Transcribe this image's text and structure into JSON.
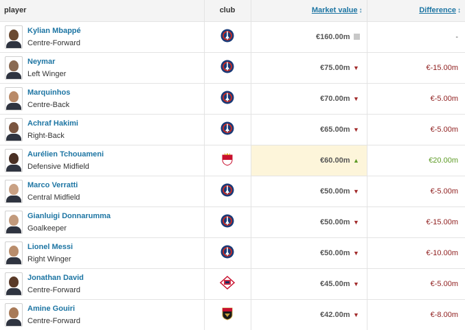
{
  "header": {
    "player": "player",
    "club": "club",
    "market_value": "Market value",
    "difference": "Difference",
    "sort_icon": "↕"
  },
  "colors": {
    "link": "#1d75a3",
    "negative": "#8e1c1c",
    "positive": "#5c9a24",
    "highlight": "#fdf5da",
    "psg_primary": "#1b3b78",
    "psg_accent": "#da291c"
  },
  "players": [
    {
      "name": "Kylian Mbappé",
      "position": "Centre-Forward",
      "club_icon": "psg-crest-icon",
      "value": "€160.00m",
      "trend": "same",
      "diff": "-",
      "diff_tone": "neu",
      "skin": "#6b4a32"
    },
    {
      "name": "Neymar",
      "position": "Left Winger",
      "club_icon": "psg-crest-icon",
      "value": "€75.00m",
      "trend": "down",
      "diff": "€-15.00m",
      "diff_tone": "neg",
      "skin": "#8a6a52"
    },
    {
      "name": "Marquinhos",
      "position": "Centre-Back",
      "club_icon": "psg-crest-icon",
      "value": "€70.00m",
      "trend": "down",
      "diff": "€-5.00m",
      "diff_tone": "neg",
      "skin": "#b98a68"
    },
    {
      "name": "Achraf Hakimi",
      "position": "Right-Back",
      "club_icon": "psg-crest-icon",
      "value": "€65.00m",
      "trend": "down",
      "diff": "€-5.00m",
      "diff_tone": "neg",
      "skin": "#7a5540"
    },
    {
      "name": "Aurélien Tchouameni",
      "position": "Defensive Midfield",
      "club_icon": "monaco-crest-icon",
      "value": "€60.00m",
      "trend": "up",
      "diff": "€20.00m",
      "diff_tone": "pos",
      "skin": "#4a3024",
      "highlight": true
    },
    {
      "name": "Marco Verratti",
      "position": "Central Midfield",
      "club_icon": "psg-crest-icon",
      "value": "€50.00m",
      "trend": "down",
      "diff": "€-5.00m",
      "diff_tone": "neg",
      "skin": "#c9a184"
    },
    {
      "name": "Gianluigi Donnarumma",
      "position": "Goalkeeper",
      "club_icon": "psg-crest-icon",
      "value": "€50.00m",
      "trend": "down",
      "diff": "€-15.00m",
      "diff_tone": "neg",
      "skin": "#c29a7c"
    },
    {
      "name": "Lionel Messi",
      "position": "Right Winger",
      "club_icon": "psg-crest-icon",
      "value": "€50.00m",
      "trend": "down",
      "diff": "€-10.00m",
      "diff_tone": "neg",
      "skin": "#b98d6c"
    },
    {
      "name": "Jonathan David",
      "position": "Centre-Forward",
      "club_icon": "lille-crest-icon",
      "value": "€45.00m",
      "trend": "down",
      "diff": "€-5.00m",
      "diff_tone": "neg",
      "skin": "#5a3a28"
    },
    {
      "name": "Amine Gouiri",
      "position": "Centre-Forward",
      "club_icon": "nice-crest-icon",
      "value": "€42.00m",
      "trend": "down",
      "diff": "€-8.00m",
      "diff_tone": "neg",
      "skin": "#a87a58"
    }
  ]
}
